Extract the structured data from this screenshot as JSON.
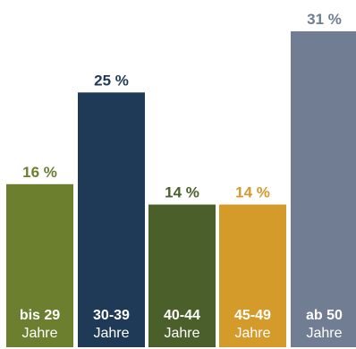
{
  "chart_data": {
    "type": "bar",
    "categories": [
      "bis 29 Jahre",
      "30-39 Jahre",
      "40-44 Jahre",
      "45-49 Jahre",
      "ab 50 Jahre"
    ],
    "category_labels": [
      {
        "line1": "bis 29",
        "line2": "Jahre"
      },
      {
        "line1": "30-39",
        "line2": "Jahre"
      },
      {
        "line1": "40-44",
        "line2": "Jahre"
      },
      {
        "line1": "45-49",
        "line2": "Jahre"
      },
      {
        "line1": "ab 50",
        "line2": "Jahre"
      }
    ],
    "values": [
      16,
      25,
      14,
      14,
      31
    ],
    "value_labels": [
      "16 %",
      "25 %",
      "14 %",
      "14 %",
      "31 %"
    ],
    "colors": [
      "#6b7f2f",
      "#1f3a56",
      "#4a5f2a",
      "#d49a2a",
      "#707d92"
    ],
    "ylim": [
      0,
      31
    ],
    "grid": false,
    "legend": "none"
  }
}
